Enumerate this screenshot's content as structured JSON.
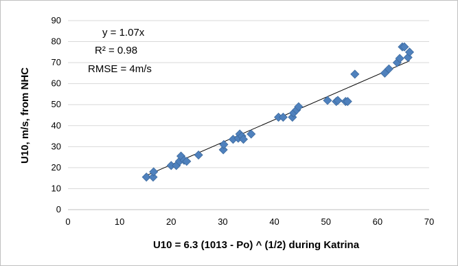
{
  "chart_data": {
    "type": "scatter",
    "title": "",
    "xlabel": "U10 = 6.3 (1013 - Po) ^ (1/2) during Katrina",
    "ylabel": "U10, m/s, from NHC",
    "xlim": [
      0,
      70
    ],
    "ylim": [
      0,
      90
    ],
    "x_ticks": [
      "0",
      "10",
      "20",
      "30",
      "40",
      "50",
      "60",
      "70"
    ],
    "y_ticks": [
      "0",
      "10",
      "20",
      "30",
      "40",
      "50",
      "60",
      "70",
      "80",
      "90"
    ],
    "grid": "horizontal",
    "legend": "none",
    "annotations": [
      "y = 1.07x",
      "R² = 0.98",
      "RMSE = 4m/s"
    ],
    "trendline": {
      "slope": 1.07,
      "intercept": 0,
      "x_range": [
        15.2,
        66.2
      ]
    },
    "series": [
      {
        "marker_color": "#4f81bd",
        "x": [
          15.2,
          16.5,
          16.6,
          20.0,
          21.0,
          21.6,
          21.9,
          22.5,
          23.0,
          25.3,
          30.1,
          30.2,
          32.0,
          33.0,
          33.3,
          33.7,
          34.0,
          35.5,
          40.8,
          41.7,
          43.5,
          43.7,
          44.3,
          44.7,
          50.3,
          52.0,
          52.3,
          53.8,
          54.2,
          55.6,
          61.4,
          62.2,
          63.8,
          64.3,
          64.8,
          65.2,
          65.9,
          66.2
        ],
        "y": [
          15.5,
          15.5,
          18.0,
          21.0,
          21.0,
          23.0,
          25.5,
          23.5,
          23.0,
          26.0,
          28.5,
          31.0,
          33.5,
          34.0,
          36.0,
          35.0,
          33.5,
          36.0,
          44.0,
          44.0,
          44.0,
          46.0,
          47.5,
          49.0,
          52.0,
          51.5,
          52.0,
          51.5,
          51.5,
          64.5,
          65.0,
          67.0,
          70.0,
          72.0,
          77.5,
          77.5,
          72.5,
          75.0
        ]
      }
    ]
  }
}
